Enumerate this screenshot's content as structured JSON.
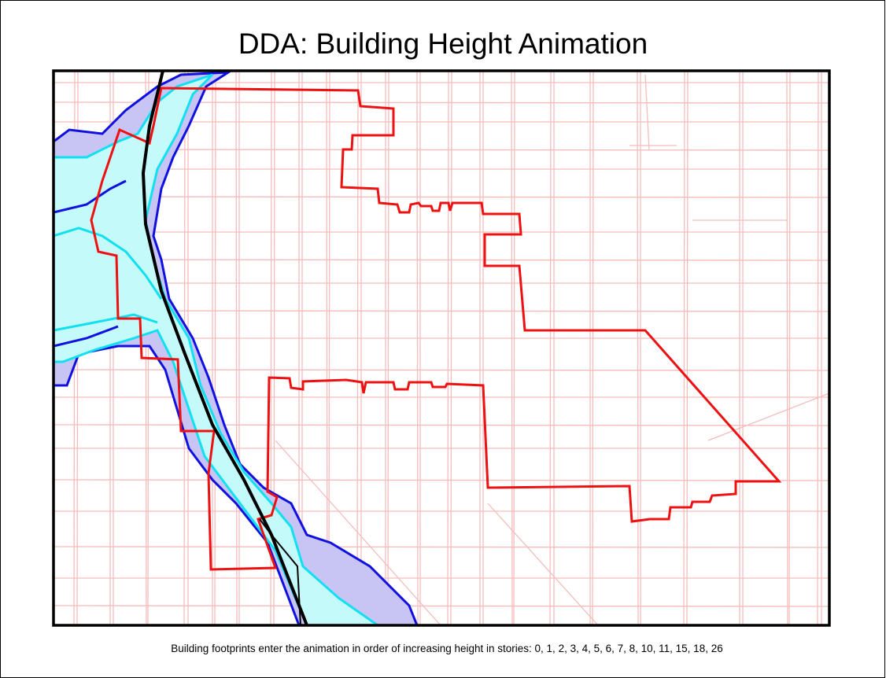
{
  "header": {
    "title": "DDA:  Building Height Animation"
  },
  "caption": "Building footprints enter the animation in order of increasing height in stories:  0, 1, 2, 3, 4, 5, 6, 7, 8, 10, 11, 15, 18, 26"
}
